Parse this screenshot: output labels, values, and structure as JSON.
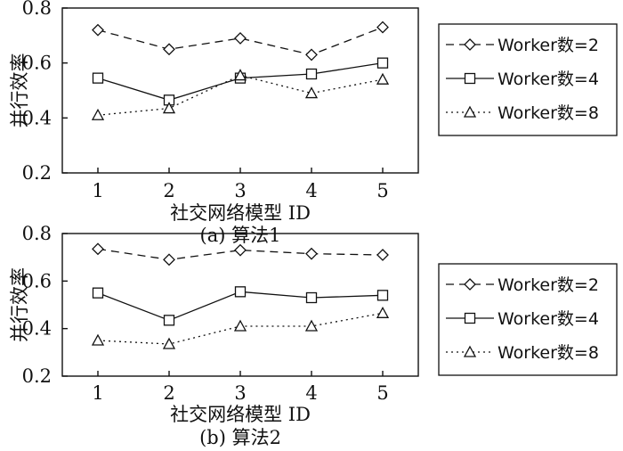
{
  "chart_data": [
    {
      "type": "line",
      "caption": "(a) 算法1",
      "xlabel": "社交网络模型 ID",
      "ylabel": "并行效率",
      "categories": [
        "1",
        "2",
        "3",
        "4",
        "5"
      ],
      "yticks": [
        "0.2",
        "0.4",
        "0.6",
        "0.8"
      ],
      "ylim": [
        0.2,
        0.8
      ],
      "grid": false,
      "legend_position": "right",
      "series": [
        {
          "name": "Worker数=2",
          "marker": "diamond",
          "dash": "dashed",
          "values": [
            0.72,
            0.65,
            0.69,
            0.63,
            0.73
          ]
        },
        {
          "name": "Worker数=4",
          "marker": "square",
          "dash": "solid",
          "values": [
            0.545,
            0.465,
            0.545,
            0.56,
            0.6
          ]
        },
        {
          "name": "Worker数=8",
          "marker": "triangle",
          "dash": "dotted",
          "values": [
            0.41,
            0.435,
            0.555,
            0.49,
            0.54
          ]
        }
      ]
    },
    {
      "type": "line",
      "caption": "(b) 算法2",
      "xlabel": "社交网络模型 ID",
      "ylabel": "并行效率",
      "categories": [
        "1",
        "2",
        "3",
        "4",
        "5"
      ],
      "yticks": [
        "0.2",
        "0.4",
        "0.6",
        "0.8"
      ],
      "ylim": [
        0.2,
        0.8
      ],
      "grid": false,
      "legend_position": "right",
      "series": [
        {
          "name": "Worker数=2",
          "marker": "diamond",
          "dash": "dashed",
          "values": [
            0.735,
            0.69,
            0.73,
            0.715,
            0.71
          ]
        },
        {
          "name": "Worker数=4",
          "marker": "square",
          "dash": "solid",
          "values": [
            0.55,
            0.435,
            0.555,
            0.53,
            0.54
          ]
        },
        {
          "name": "Worker数=8",
          "marker": "triangle",
          "dash": "dotted",
          "values": [
            0.35,
            0.335,
            0.41,
            0.41,
            0.465
          ]
        }
      ]
    }
  ]
}
